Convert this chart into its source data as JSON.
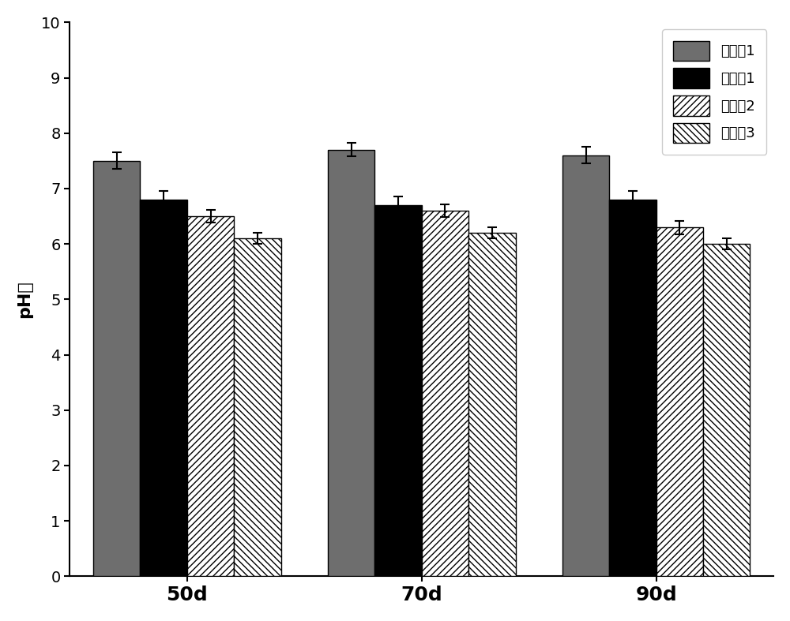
{
  "groups": [
    "50d",
    "70d",
    "90d"
  ],
  "series": [
    {
      "label": "实施例1",
      "values": [
        7.5,
        7.7,
        7.6
      ],
      "errors": [
        0.15,
        0.12,
        0.15
      ],
      "color": "#6e6e6e",
      "hatch": null
    },
    {
      "label": "对比例1",
      "values": [
        6.8,
        6.7,
        6.8
      ],
      "errors": [
        0.15,
        0.15,
        0.15
      ],
      "color": "#000000",
      "hatch": null
    },
    {
      "label": "对比例2",
      "values": [
        6.5,
        6.6,
        6.3
      ],
      "errors": [
        0.12,
        0.12,
        0.12
      ],
      "color": "#ffffff",
      "hatch": "////"
    },
    {
      "label": "对比例3",
      "values": [
        6.1,
        6.2,
        6.0
      ],
      "errors": [
        0.1,
        0.1,
        0.1
      ],
      "color": "#ffffff",
      "hatch": "\\\\\\\\"
    }
  ],
  "ylabel": "pH值",
  "ylim": [
    0,
    10
  ],
  "yticks": [
    0,
    1,
    2,
    3,
    4,
    5,
    6,
    7,
    8,
    9,
    10
  ],
  "bar_width": 0.2,
  "xlabel_fontsize": 18,
  "ylabel_fontsize": 16,
  "tick_fontsize": 14,
  "legend_fontsize": 13,
  "background_color": "#ffffff",
  "edgecolor": "#000000"
}
